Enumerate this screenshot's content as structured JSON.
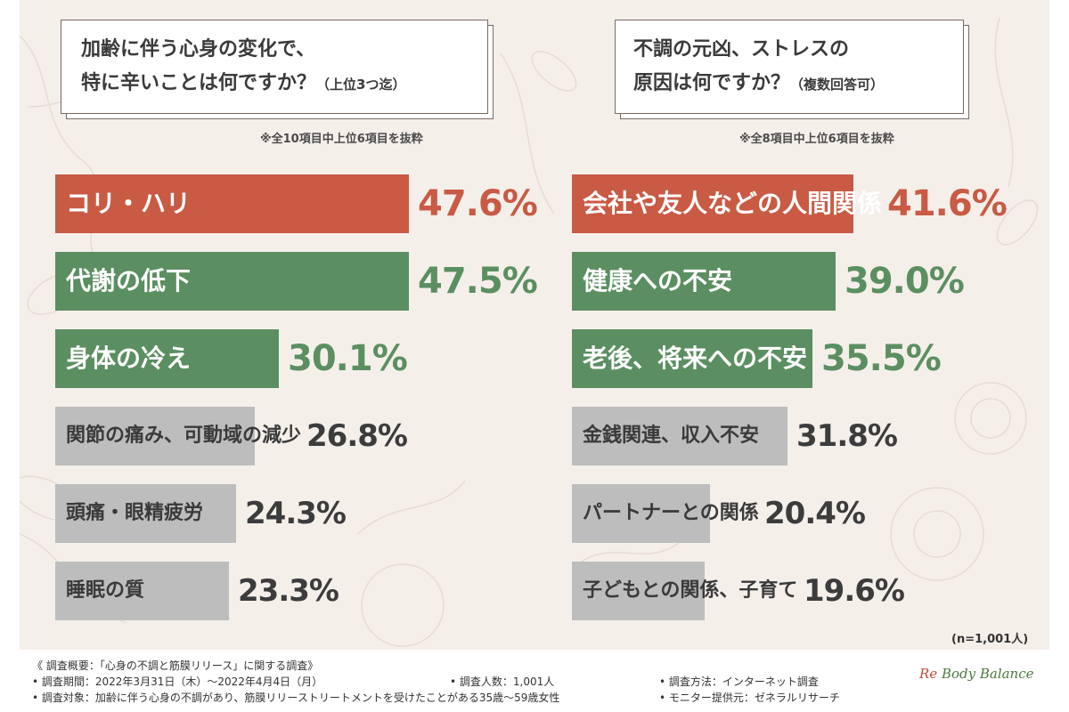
{
  "charts": [
    {
      "question_line1": "加齢に伴う心身の変化で、",
      "question_line2": "特に辛いことは何ですか？",
      "question_note": "（上位3つ迄）",
      "subnote": "※全10項目中上位6項目を抜粋"
    },
    {
      "question_line1": "不調の元凶、ストレスの",
      "question_line2": "原因は何ですか？",
      "question_note": "（複数回答可）",
      "subnote": "※全8項目中上位6項目を抜粋"
    }
  ],
  "sample_size": "(n=1,001人)",
  "colors": {
    "top": "#c95a44",
    "green": "#5b8f61",
    "gray": "#bdbdbd",
    "background": "#f5efea"
  },
  "chart_data": [
    {
      "type": "bar",
      "orientation": "horizontal",
      "unit": "%",
      "categories": [
        "コリ・ハリ",
        "代謝の低下",
        "身体の冷え",
        "関節の痛み、可動域の減少",
        "頭痛・眼精疲労",
        "睡眠の質"
      ],
      "values": [
        47.6,
        47.5,
        30.1,
        26.8,
        24.3,
        23.3
      ],
      "value_labels": [
        "47.6%",
        "47.5%",
        "30.1%",
        "26.8%",
        "24.3%",
        "23.3%"
      ],
      "colors": [
        "#c95a44",
        "#5b8f61",
        "#5b8f61",
        "#bdbdbd",
        "#bdbdbd",
        "#bdbdbd"
      ],
      "value_colors": [
        "#c95a44",
        "#5b8f61",
        "#5b8f61",
        "#3c3c3c",
        "#3c3c3c",
        "#3c3c3c"
      ]
    },
    {
      "type": "bar",
      "orientation": "horizontal",
      "unit": "%",
      "categories": [
        "会社や友人などの人間関係",
        "健康への不安",
        "老後、将来への不安",
        "金銭関連、収入不安",
        "パートナーとの関係",
        "子どもとの関係、子育て"
      ],
      "values": [
        41.6,
        39.0,
        35.5,
        31.8,
        20.4,
        19.6
      ],
      "value_labels": [
        "41.6%",
        "39.0%",
        "35.5%",
        "31.8%",
        "20.4%",
        "19.6%"
      ],
      "colors": [
        "#c95a44",
        "#5b8f61",
        "#5b8f61",
        "#bdbdbd",
        "#bdbdbd",
        "#bdbdbd"
      ],
      "value_colors": [
        "#c95a44",
        "#5b8f61",
        "#5b8f61",
        "#3c3c3c",
        "#3c3c3c",
        "#3c3c3c"
      ]
    }
  ],
  "footer": {
    "title": "《 調査概要：「心身の不調と筋膜リリース」に関する調査》",
    "period": "• 調査期間：2022年3月31日（木）～2022年4月4日（月）",
    "target": "• 調査対象：加齢に伴う心身の不調があり、筋膜リリーストリートメントを受けたことがある35歳～59歳女性",
    "count": "• 調査人数：1,001人",
    "method": "• 調査方法：インターネット調査",
    "provider": "• モニター提供元：ゼネラルリサーチ"
  },
  "logo": {
    "prefix": "Re",
    "main": "Body Balance"
  }
}
